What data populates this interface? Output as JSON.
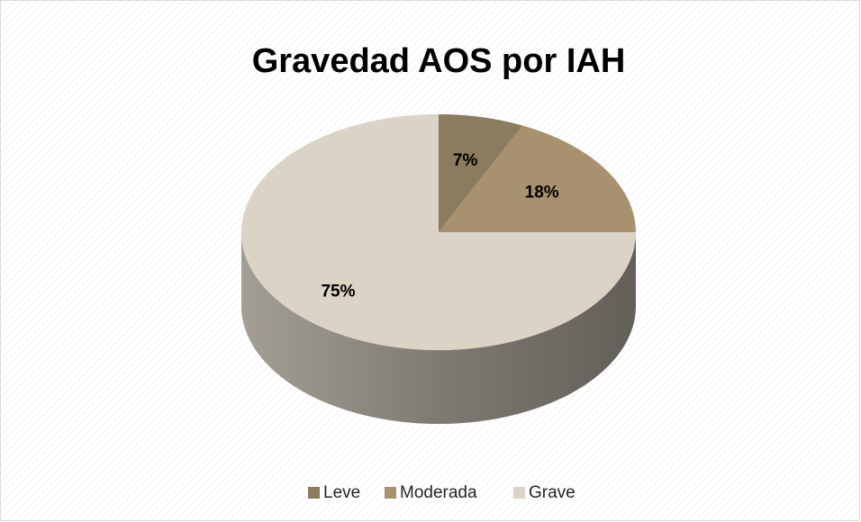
{
  "chart_data": {
    "type": "pie",
    "title": "Gravedad AOS por IAH",
    "categories": [
      "Leve",
      "Moderada",
      "Grave"
    ],
    "values": [
      7,
      18,
      75
    ],
    "value_labels": [
      "7%",
      "18%",
      "75%"
    ],
    "colors": [
      "#8b7b5f",
      "#a8916f",
      "#dad3c6"
    ],
    "legend": "bottom"
  }
}
